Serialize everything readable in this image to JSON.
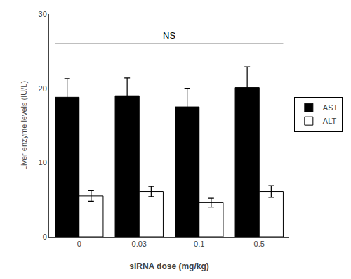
{
  "chart_data": {
    "type": "bar",
    "categories": [
      "0",
      "0.03",
      "0.1",
      "0.5"
    ],
    "series": [
      {
        "name": "AST",
        "color": "#000000",
        "values": [
          18.8,
          19.0,
          17.5,
          20.1
        ],
        "errors": [
          2.5,
          2.4,
          2.5,
          2.8
        ]
      },
      {
        "name": "ALT",
        "color": "#ffffff",
        "values": [
          5.5,
          6.1,
          4.6,
          6.1
        ],
        "errors": [
          0.7,
          0.7,
          0.6,
          0.8
        ]
      }
    ],
    "xlabel": "siRNA dose (mg/kg)",
    "ylabel": "Liver enzyme levels (IU/L)",
    "ylim": [
      0,
      30
    ],
    "yticks": [
      0,
      10,
      20,
      30
    ],
    "annotations": [
      {
        "text": "NS",
        "y": 26.0
      }
    ],
    "legend": "right",
    "grid": false
  }
}
